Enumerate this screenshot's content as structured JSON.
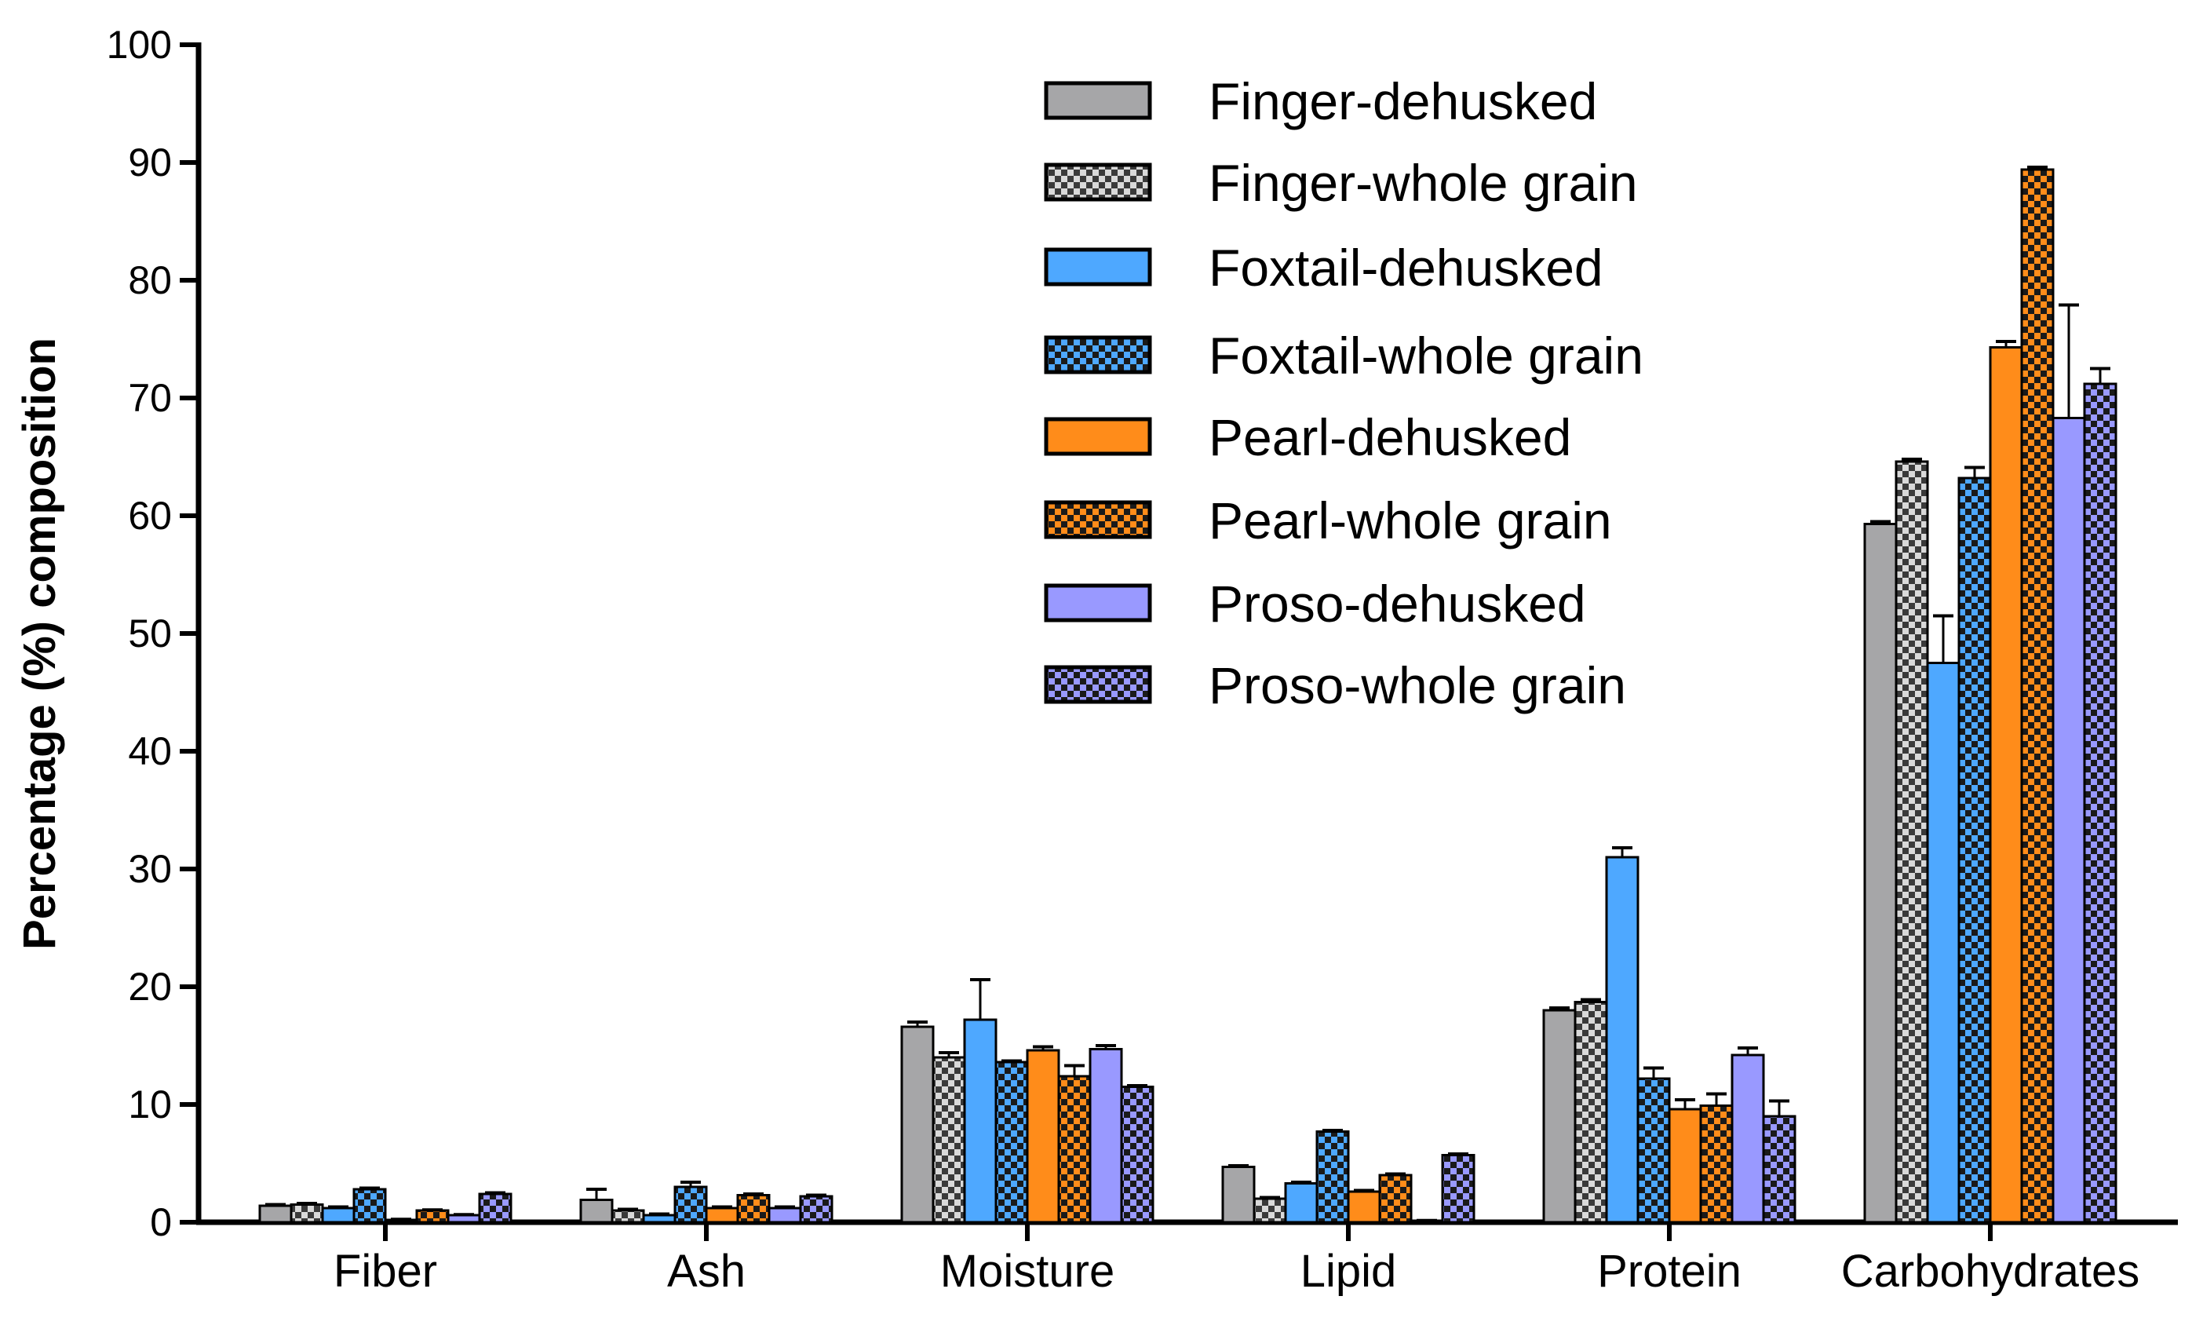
{
  "chart_data": {
    "type": "bar",
    "title": "",
    "xlabel": "",
    "ylabel": "Percentage (%) composition",
    "ylim": [
      0,
      100
    ],
    "yticks": [
      0,
      10,
      20,
      30,
      40,
      50,
      60,
      70,
      80,
      90,
      100
    ],
    "grid": false,
    "legend_position": "top-right",
    "categories": [
      "Fiber",
      "Ash",
      "Moisture",
      "Lipid",
      "Protein",
      "Carbohydrates"
    ],
    "series": [
      {
        "name": "Finger-dehusked",
        "color": "#a6a6a8",
        "pattern": "solid",
        "values": [
          1.4,
          1.9,
          16.6,
          4.7,
          18.0,
          59.3
        ],
        "errors": [
          0.1,
          0.9,
          0.4,
          0.1,
          0.2,
          0.2
        ]
      },
      {
        "name": "Finger-whole grain",
        "color": "#8c8c8c",
        "pattern": "checker",
        "values": [
          1.5,
          1.0,
          14.0,
          2.0,
          18.7,
          64.6
        ],
        "errors": [
          0.1,
          0.1,
          0.4,
          0.1,
          0.2,
          0.2
        ]
      },
      {
        "name": "Foxtail-dehusked",
        "color": "#4ea8ff",
        "pattern": "solid",
        "values": [
          1.2,
          0.6,
          17.2,
          3.3,
          31.0,
          47.5
        ],
        "errors": [
          0.1,
          0.1,
          3.4,
          0.1,
          0.8,
          4.0
        ]
      },
      {
        "name": "Foxtail-whole grain",
        "color": "#4ea8ff",
        "pattern": "checker",
        "values": [
          2.8,
          3.0,
          13.6,
          7.7,
          12.2,
          63.2
        ],
        "errors": [
          0.1,
          0.4,
          0.1,
          0.1,
          0.9,
          0.9
        ]
      },
      {
        "name": "Pearl-dehusked",
        "color": "#ff8c1a",
        "pattern": "solid",
        "values": [
          0.2,
          1.2,
          14.6,
          2.6,
          9.6,
          74.3
        ],
        "errors": [
          0.05,
          0.1,
          0.3,
          0.1,
          0.8,
          0.5
        ]
      },
      {
        "name": "Pearl-whole grain",
        "color": "#ff8c1a",
        "pattern": "checker",
        "values": [
          1.0,
          2.3,
          12.4,
          4.0,
          9.9,
          89.4
        ],
        "errors": [
          0.05,
          0.1,
          0.9,
          0.1,
          1.0,
          0.2
        ]
      },
      {
        "name": "Proso-dehusked",
        "color": "#9999ff",
        "pattern": "solid",
        "values": [
          0.6,
          1.2,
          14.7,
          0.1,
          14.2,
          68.3
        ],
        "errors": [
          0.05,
          0.1,
          0.3,
          0.05,
          0.6,
          9.6
        ]
      },
      {
        "name": "Proso-whole grain",
        "color": "#9999ff",
        "pattern": "checker",
        "values": [
          2.4,
          2.2,
          11.5,
          5.7,
          9.0,
          71.2
        ],
        "errors": [
          0.1,
          0.1,
          0.1,
          0.1,
          1.3,
          1.3
        ]
      }
    ]
  }
}
